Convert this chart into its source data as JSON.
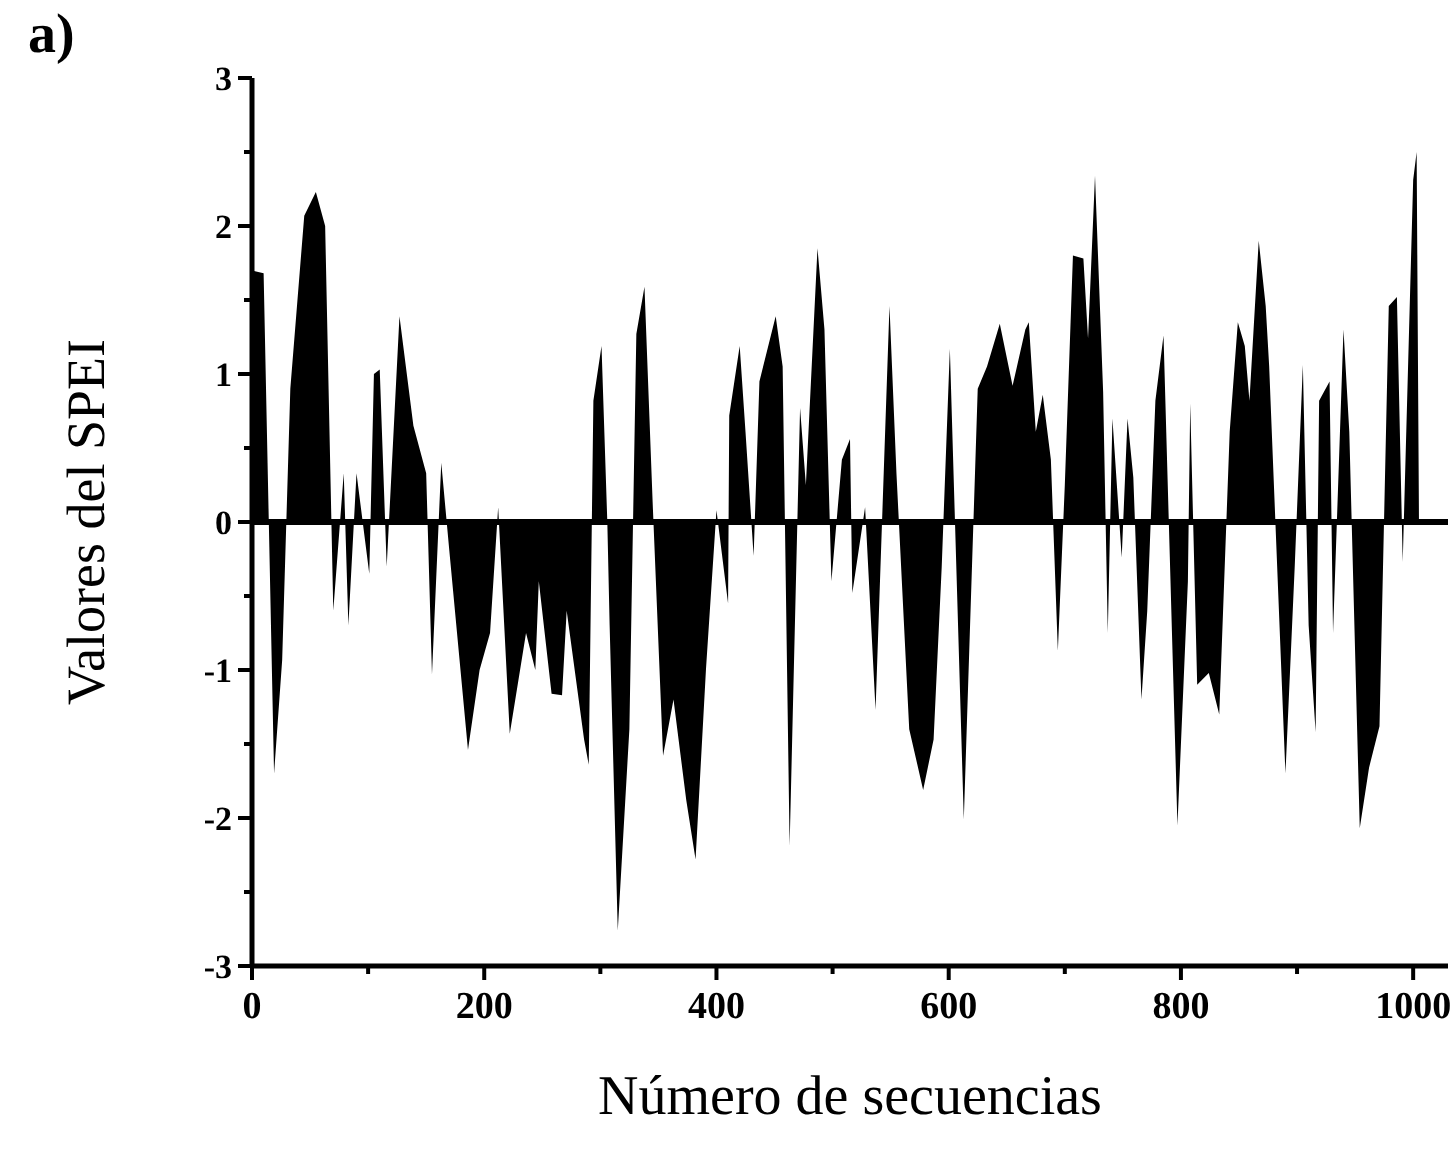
{
  "chart_data": {
    "type": "area",
    "xlabel": "Número de secuencias",
    "ylabel": "Valores del SPEI",
    "annotations": [
      "a)"
    ],
    "x": [
      0,
      10,
      19,
      26,
      33,
      45,
      55,
      63,
      70,
      79,
      83,
      90,
      101,
      105,
      110,
      116,
      127,
      139,
      150,
      155,
      163,
      170,
      186,
      196,
      205,
      212,
      222,
      236,
      244,
      247,
      258,
      267,
      271,
      286,
      290,
      294,
      301,
      306,
      308,
      315,
      325,
      331,
      338,
      345,
      354,
      363,
      374,
      382,
      391,
      400,
      410,
      411,
      420,
      425,
      432,
      437,
      451,
      457,
      463,
      472,
      477,
      487,
      493,
      499,
      508,
      515,
      517,
      528,
      537,
      549,
      555,
      566,
      578,
      587,
      594,
      601,
      613,
      625,
      633,
      644,
      655,
      666,
      669,
      675,
      681,
      688,
      694,
      700,
      707,
      716,
      720,
      726,
      733,
      737,
      741,
      749,
      754,
      759,
      766,
      771,
      778,
      785,
      793,
      797,
      806,
      808,
      814,
      824,
      833,
      842,
      849,
      855,
      859,
      867,
      873,
      876,
      890,
      898,
      905,
      910,
      916,
      919,
      928,
      931,
      940,
      945,
      954,
      962,
      971,
      979,
      986,
      991,
      1000,
      1003,
      1005
    ],
    "values": [
      1.7,
      1.68,
      -1.7,
      -0.93,
      0.9,
      2.07,
      2.23,
      2.0,
      -0.6,
      0.33,
      -0.7,
      0.33,
      -0.35,
      1.0,
      1.03,
      -0.3,
      1.39,
      0.65,
      0.33,
      -1.03,
      0.4,
      -0.2,
      -1.54,
      -1.0,
      -0.75,
      0.1,
      -1.43,
      -0.75,
      -1.0,
      -0.4,
      -1.16,
      -1.17,
      -0.6,
      -1.47,
      -1.64,
      0.82,
      1.19,
      0,
      -0.7,
      -2.76,
      -1.4,
      1.27,
      1.59,
      0.14,
      -1.58,
      -1.2,
      -1.88,
      -2.28,
      -0.99,
      0.08,
      -0.55,
      0.72,
      1.19,
      0.61,
      -0.23,
      0.95,
      1.39,
      1.05,
      -2.19,
      0.77,
      0.25,
      1.85,
      1.3,
      -0.4,
      0.42,
      0.56,
      -0.48,
      0.1,
      -1.27,
      1.46,
      0.33,
      -1.4,
      -1.81,
      -1.47,
      -0.3,
      1.17,
      -2.01,
      0.9,
      1.05,
      1.34,
      0.92,
      1.3,
      1.35,
      0.61,
      0.86,
      0.42,
      -0.87,
      0.25,
      1.8,
      1.78,
      1.24,
      2.34,
      0.88,
      -0.75,
      0.7,
      -0.24,
      0.7,
      0.3,
      -1.2,
      -0.6,
      0.82,
      1.26,
      -0.95,
      -2.05,
      -0.4,
      0.8,
      -1.1,
      -1.02,
      -1.3,
      0.61,
      1.35,
      1.19,
      0.82,
      1.9,
      1.46,
      1.05,
      -1.7,
      -0.3,
      1.06,
      -0.7,
      -1.42,
      0.82,
      0.95,
      -0.75,
      1.3,
      0.61,
      -2.07,
      -1.66,
      -1.38,
      1.46,
      1.52,
      -0.27,
      2.31,
      2.5,
      0
    ],
    "color": "#000000",
    "xlim": [
      0,
      1030
    ],
    "xticks": [
      0,
      {
        "value": 100,
        "label": null
      },
      200,
      {
        "value": 300,
        "label": null
      },
      400,
      {
        "value": 500,
        "label": null
      },
      600,
      {
        "value": 700,
        "label": null
      },
      800,
      {
        "value": 900,
        "label": null
      },
      1000
    ],
    "ylim": [
      -3,
      3
    ],
    "yticks": [
      -3,
      {
        "value": -2.5,
        "label": null
      },
      -2,
      {
        "value": -1.5,
        "label": null
      },
      -1,
      {
        "value": -0.5,
        "label": null
      },
      0,
      {
        "value": 0.5,
        "label": null
      },
      1,
      {
        "value": 1.5,
        "label": null
      },
      2,
      {
        "value": 2.5,
        "label": null
      },
      3
    ],
    "ref_lines": [
      {
        "axis": "y",
        "value": 0,
        "color": "#000000"
      }
    ]
  }
}
